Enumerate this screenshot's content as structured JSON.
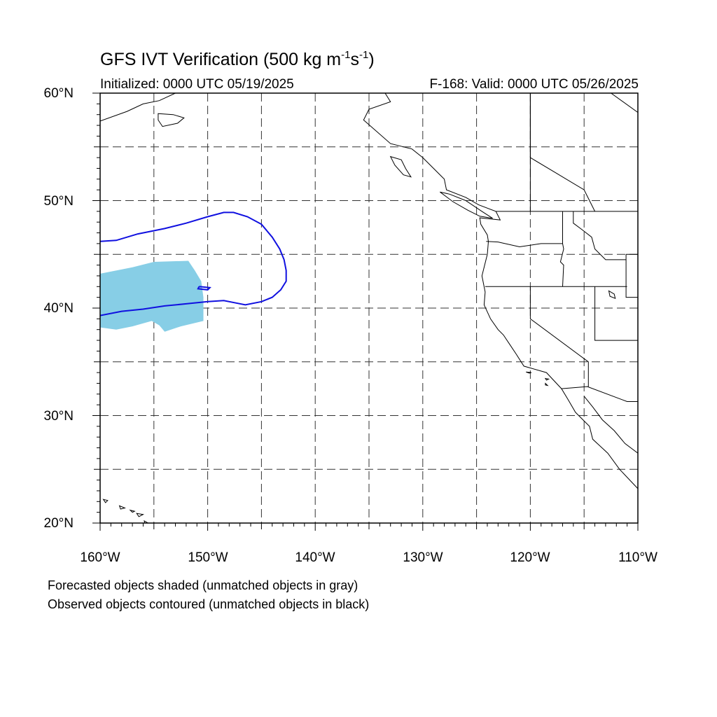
{
  "title": {
    "main": "GFS IVT Verification (500 kg m",
    "exp1": "-1",
    "mid": "s",
    "exp2": "-1",
    "close": ")"
  },
  "initialized": "Initialized: 0000 UTC 05/19/2025",
  "valid": "F-168: Valid: 0000 UTC 05/26/2025",
  "lat_labels": [
    "60°N",
    "50°N",
    "40°N",
    "30°N",
    "20°N"
  ],
  "lon_labels": [
    "160°W",
    "150°W",
    "140°W",
    "130°W",
    "120°W",
    "110°W"
  ],
  "captions": [
    "Forecasted objects shaded (unmatched objects in gray)",
    "Observed objects contoured (unmatched objects in black)"
  ],
  "map": {
    "lon_range": [
      -160,
      -110
    ],
    "lat_range": [
      20,
      60
    ],
    "grid_spacing_deg": 5,
    "forecast_object_color": "#87CEE6",
    "observed_contour_color": "#1010E0",
    "forecast_object": [
      [
        -160,
        43.2
      ],
      [
        -157,
        43.8
      ],
      [
        -155,
        44.3
      ],
      [
        -151.8,
        44.4
      ],
      [
        -151.2,
        43.5
      ],
      [
        -150.6,
        42.5
      ],
      [
        -150.4,
        41.0
      ],
      [
        -150.4,
        38.8
      ],
      [
        -152.5,
        38.3
      ],
      [
        -154.0,
        37.8
      ],
      [
        -154.5,
        38.4
      ],
      [
        -155.2,
        38.8
      ],
      [
        -157.0,
        38.3
      ],
      [
        -158.5,
        38.0
      ],
      [
        -160,
        38.2
      ]
    ],
    "observed_contour": [
      [
        -160,
        46.2
      ],
      [
        -158.5,
        46.3
      ],
      [
        -156.5,
        46.9
      ],
      [
        -154,
        47.4
      ],
      [
        -152,
        47.9
      ],
      [
        -150,
        48.5
      ],
      [
        -148.5,
        48.9
      ],
      [
        -147.6,
        48.9
      ],
      [
        -146.3,
        48.5
      ],
      [
        -145,
        47.8
      ],
      [
        -144,
        46.6
      ],
      [
        -143.3,
        45.5
      ],
      [
        -142.9,
        44.5
      ],
      [
        -142.7,
        43.5
      ],
      [
        -142.7,
        42.5
      ],
      [
        -143.2,
        41.7
      ],
      [
        -144,
        41.0
      ],
      [
        -145,
        40.6
      ],
      [
        -146.5,
        40.3
      ],
      [
        -147.5,
        40.5
      ],
      [
        -148.5,
        40.7
      ],
      [
        -150,
        40.6
      ],
      [
        -152,
        40.4
      ],
      [
        -154,
        40.2
      ],
      [
        -156,
        39.9
      ],
      [
        -158,
        39.7
      ],
      [
        -160,
        39.3
      ]
    ],
    "observed_contour_small": [
      [
        -150.8,
        42.0
      ],
      [
        -149.8,
        41.9
      ],
      [
        -150.0,
        41.7
      ],
      [
        -150.9,
        41.8
      ],
      [
        -150.8,
        42.0
      ]
    ],
    "coastline_mainland": [
      [
        -110,
        58.2
      ],
      [
        -112.5,
        60
      ],
      [
        -133.5,
        60
      ],
      [
        -133,
        59.2
      ],
      [
        -135,
        58.5
      ],
      [
        -135.5,
        57.5
      ],
      [
        -133,
        55.3
      ],
      [
        -131,
        54.8
      ],
      [
        -130,
        54
      ],
      [
        -129,
        53
      ],
      [
        -128,
        52
      ],
      [
        -127.8,
        51
      ],
      [
        -126,
        50.3
      ],
      [
        -124.8,
        49.6
      ],
      [
        -123.2,
        49
      ],
      [
        -122.8,
        48.2
      ],
      [
        -124.7,
        48.4
      ],
      [
        -124.6,
        47.8
      ],
      [
        -124,
        46.8
      ],
      [
        -123.9,
        46.2
      ],
      [
        -124,
        45
      ],
      [
        -124.5,
        43
      ],
      [
        -124.2,
        41.5
      ],
      [
        -124.3,
        40.3
      ],
      [
        -123.7,
        39
      ],
      [
        -123,
        38
      ],
      [
        -122.5,
        37.5
      ],
      [
        -121.9,
        36.6
      ],
      [
        -121.3,
        35.7
      ],
      [
        -120.6,
        34.6
      ],
      [
        -118.5,
        34
      ],
      [
        -117.1,
        32.5
      ],
      [
        -116.5,
        31.5
      ],
      [
        -115.8,
        30.3
      ],
      [
        -114.5,
        29
      ],
      [
        -114.2,
        27.8
      ],
      [
        -112.8,
        26.5
      ],
      [
        -111.7,
        25
      ],
      [
        -110,
        23.2
      ]
    ],
    "coastline_gulf_of_california": [
      [
        -115.0,
        31.8
      ],
      [
        -114.2,
        30.8
      ],
      [
        -113.3,
        29.6
      ],
      [
        -112.2,
        28.6
      ],
      [
        -111.2,
        27.4
      ],
      [
        -110,
        26.5
      ]
    ],
    "vancouver_island": [
      [
        -128.4,
        50.8
      ],
      [
        -127.5,
        50.6
      ],
      [
        -126,
        50
      ],
      [
        -124.5,
        49
      ],
      [
        -123.5,
        48.35
      ],
      [
        -124.7,
        48.55
      ],
      [
        -125.8,
        49.1
      ],
      [
        -127.2,
        49.9
      ],
      [
        -128.4,
        50.8
      ]
    ],
    "haida_gwaii": [
      [
        -133,
        54.1
      ],
      [
        -132,
        53.8
      ],
      [
        -131.6,
        53
      ],
      [
        -131.1,
        52.2
      ],
      [
        -131.8,
        52.4
      ],
      [
        -132.6,
        53.3
      ],
      [
        -133,
        54.1
      ]
    ],
    "alaska_coast": [
      [
        -160,
        57.4
      ],
      [
        -157.5,
        58.3
      ],
      [
        -156,
        59
      ],
      [
        -154.5,
        59.3
      ],
      [
        -153,
        60
      ]
    ],
    "kodiak": [
      [
        -154.6,
        58.1
      ],
      [
        -153.2,
        58.0
      ],
      [
        -152.2,
        57.7
      ],
      [
        -152.8,
        57.2
      ],
      [
        -154.2,
        56.9
      ],
      [
        -154.6,
        57.5
      ],
      [
        -154.6,
        58.1
      ]
    ],
    "hawaii_islands": [
      [
        [
          -159.7,
          22.2
        ],
        [
          -159.3,
          22.1
        ],
        [
          -159.5,
          21.9
        ],
        [
          -159.7,
          22.2
        ]
      ],
      [
        [
          -158.2,
          21.6
        ],
        [
          -157.7,
          21.4
        ],
        [
          -158.1,
          21.3
        ],
        [
          -158.2,
          21.6
        ]
      ],
      [
        [
          -157.2,
          21.2
        ],
        [
          -156.8,
          21.1
        ],
        [
          -157.0,
          21.0
        ],
        [
          -157.2,
          21.2
        ]
      ],
      [
        [
          -156.6,
          20.9
        ],
        [
          -156.0,
          20.8
        ],
        [
          -156.4,
          20.6
        ],
        [
          -156.6,
          20.9
        ]
      ],
      [
        [
          -155.9,
          20.2
        ],
        [
          -155.0,
          19.7
        ],
        [
          -155.6,
          19.0
        ],
        [
          -155.9,
          20.2
        ]
      ]
    ],
    "channel_islands": [
      [
        [
          -120.4,
          34.05
        ],
        [
          -119.9,
          34.0
        ],
        [
          -120.1,
          33.95
        ],
        [
          -120.4,
          34.05
        ]
      ],
      [
        [
          -118.6,
          33.45
        ],
        [
          -118.3,
          33.4
        ],
        [
          -118.5,
          33.3
        ],
        [
          -118.6,
          33.45
        ]
      ],
      [
        [
          -118.6,
          33.0
        ],
        [
          -118.4,
          32.8
        ],
        [
          -118.6,
          32.85
        ],
        [
          -118.6,
          33.0
        ]
      ]
    ],
    "great_salt_lake": [
      [
        -112.7,
        41.6
      ],
      [
        -112.2,
        41.3
      ],
      [
        -112.1,
        40.9
      ],
      [
        -112.6,
        41.1
      ],
      [
        -112.7,
        41.6
      ]
    ],
    "borders": [
      [
        [
          -123.2,
          49.0
        ],
        [
          -110,
          49.0
        ]
      ],
      [
        [
          -124.2,
          42.0
        ],
        [
          -111,
          42.0
        ]
      ],
      [
        [
          -120.0,
          42.0
        ],
        [
          -120.0,
          39.0
        ],
        [
          -114.6,
          35.0
        ],
        [
          -114.6,
          32.7
        ]
      ],
      [
        [
          -117.1,
          32.5
        ],
        [
          -114.7,
          32.7
        ],
        [
          -111,
          31.3
        ],
        [
          -110,
          31.3
        ]
      ],
      [
        [
          -117.0,
          49.0
        ],
        [
          -117.0,
          46.0
        ],
        [
          -116.9,
          45.5
        ],
        [
          -117.2,
          44.3
        ],
        [
          -116.9,
          44.0
        ],
        [
          -117.0,
          42.0
        ]
      ],
      [
        [
          -124.1,
          46.2
        ],
        [
          -123.0,
          46.15
        ],
        [
          -121.0,
          45.7
        ],
        [
          -119.0,
          46.0
        ],
        [
          -117.0,
          46.0
        ]
      ],
      [
        [
          -116.0,
          49.0
        ],
        [
          -116.0,
          47.9
        ],
        [
          -115.2,
          47.3
        ],
        [
          -114.3,
          46.6
        ],
        [
          -114.0,
          45.5
        ],
        [
          -113.0,
          44.5
        ],
        [
          -111.1,
          44.5
        ]
      ],
      [
        [
          -111.1,
          45.0
        ],
        [
          -110.0,
          45.0
        ]
      ],
      [
        [
          -111.1,
          45.0
        ],
        [
          -111.1,
          41.0
        ],
        [
          -110.0,
          41.0
        ]
      ],
      [
        [
          -114.0,
          42.0
        ],
        [
          -114.0,
          37.0
        ],
        [
          -110,
          37.0
        ]
      ],
      [
        [
          -120.0,
          60.0
        ],
        [
          -120.0,
          49.0
        ]
      ],
      [
        [
          -114.0,
          49.0
        ],
        [
          -115.0,
          51.0
        ],
        [
          -117.5,
          52.5
        ],
        [
          -120,
          54.0
        ],
        [
          -120.0,
          60.0
        ]
      ]
    ]
  }
}
